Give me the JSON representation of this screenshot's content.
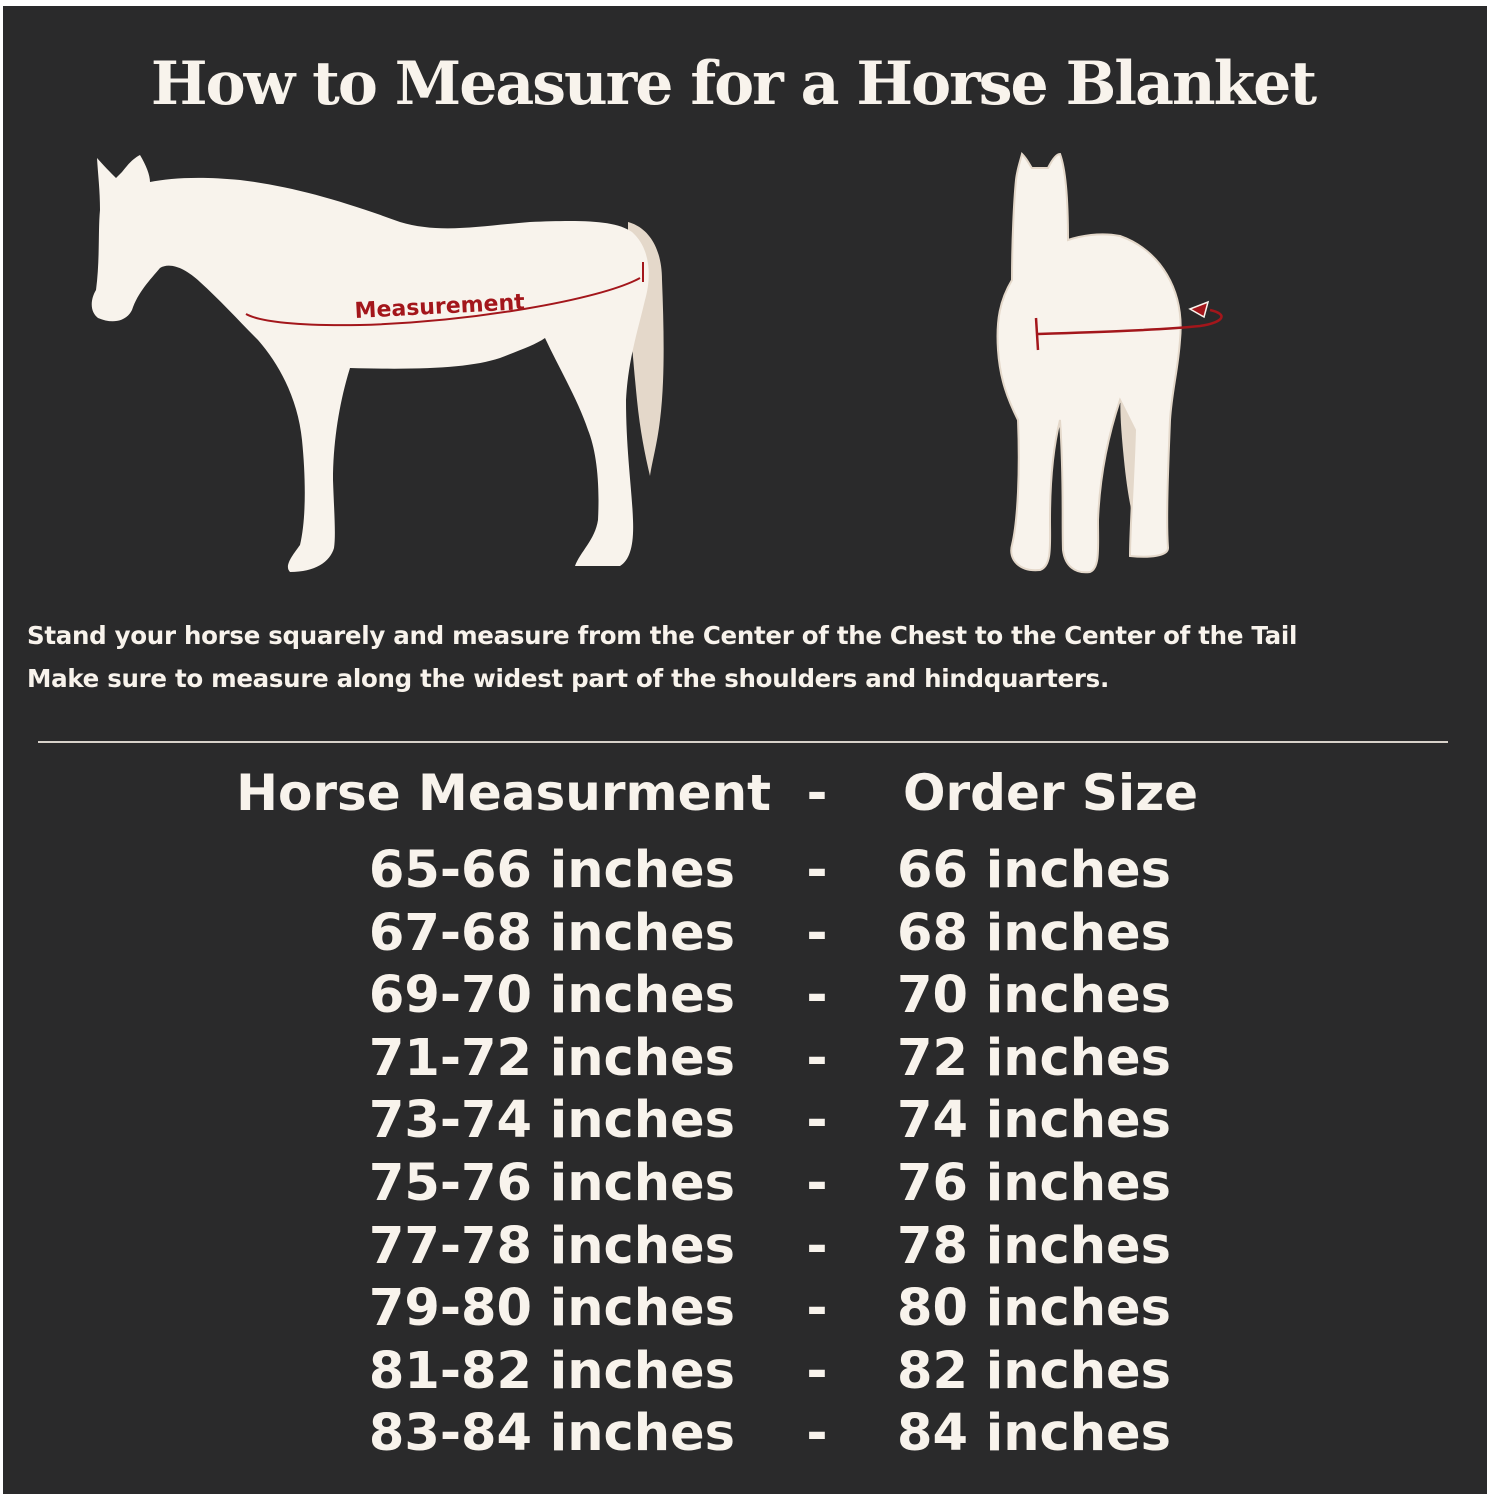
{
  "title": "How to Measure for a Horse Blanket",
  "illustration": {
    "side_label": "Measurement",
    "colors": {
      "background": "#2a2a2b",
      "horse": "#f8f3ec",
      "tail": "#e4d8ca",
      "measure_line": "#a3161b"
    }
  },
  "instructions": [
    "Stand your horse squarely and measure from the Center of the Chest to the Center of the Tail",
    "Make sure to measure along the widest part of the shoulders and hindquarters."
  ],
  "size_table": {
    "header": {
      "measurement": "Horse Measurment",
      "separator": "-",
      "size": "Order Size"
    },
    "rows": [
      {
        "measurement": "65-66 inches",
        "separator": "-",
        "size": "66 inches"
      },
      {
        "measurement": "67-68 inches",
        "separator": "-",
        "size": "68 inches"
      },
      {
        "measurement": "69-70 inches",
        "separator": "-",
        "size": "70 inches"
      },
      {
        "measurement": "71-72 inches",
        "separator": "-",
        "size": "72 inches"
      },
      {
        "measurement": "73-74 inches",
        "separator": "-",
        "size": "74 inches"
      },
      {
        "measurement": "75-76 inches",
        "separator": "-",
        "size": "76 inches"
      },
      {
        "measurement": "77-78 inches",
        "separator": "-",
        "size": "78 inches"
      },
      {
        "measurement": "79-80 inches",
        "separator": "-",
        "size": "80 inches"
      },
      {
        "measurement": "81-82 inches",
        "separator": "-",
        "size": "82 inches"
      },
      {
        "measurement": "83-84 inches",
        "separator": "-",
        "size": "84 inches"
      }
    ]
  }
}
